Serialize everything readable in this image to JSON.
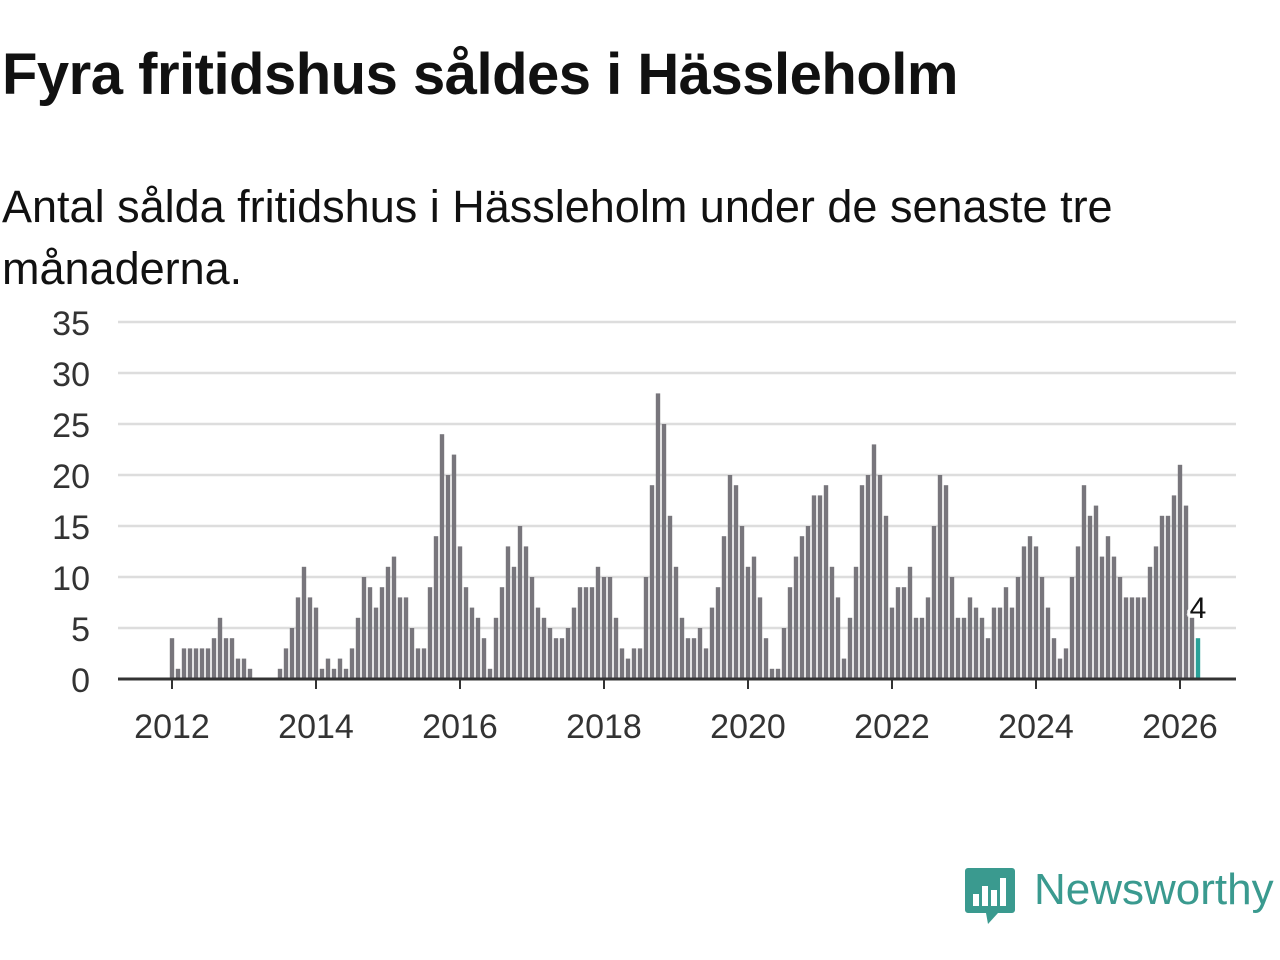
{
  "header": {
    "title": "Fyra fritidshus såldes i Hässleholm",
    "subtitle": "Antal sålda fritidshus i Hässleholm under de senaste tre månaderna."
  },
  "brand": {
    "name": "Newsworthy",
    "icon": "newsworthy-logo-icon",
    "color": "#3a9a8f"
  },
  "colors": {
    "bar": "#78767c",
    "highlight": "#2aa198",
    "grid": "#dddddd",
    "axis": "#333333"
  },
  "chart_data": {
    "type": "bar",
    "title": "Fyra fritidshus såldes i Hässleholm",
    "xlabel": "",
    "ylabel": "",
    "ylim": [
      0,
      35
    ],
    "yticks": [
      0,
      5,
      10,
      15,
      20,
      25,
      30,
      35
    ],
    "xticks": [
      "2012",
      "2014",
      "2016",
      "2018",
      "2020",
      "2022",
      "2024",
      "2026"
    ],
    "start": "2012-01",
    "end": "2026-01",
    "grid": true,
    "highlight_label": "4",
    "values": [
      4,
      1,
      3,
      3,
      3,
      3,
      3,
      4,
      6,
      4,
      4,
      2,
      2,
      1,
      0,
      0,
      0,
      0,
      1,
      3,
      5,
      8,
      11,
      8,
      7,
      1,
      2,
      1,
      2,
      1,
      3,
      6,
      10,
      9,
      7,
      9,
      11,
      12,
      8,
      8,
      5,
      3,
      3,
      9,
      14,
      24,
      20,
      22,
      13,
      9,
      7,
      6,
      4,
      1,
      6,
      9,
      13,
      11,
      15,
      13,
      10,
      7,
      6,
      5,
      4,
      4,
      5,
      7,
      9,
      9,
      9,
      11,
      10,
      10,
      6,
      3,
      2,
      3,
      3,
      10,
      19,
      28,
      25,
      16,
      11,
      6,
      4,
      4,
      5,
      3,
      7,
      9,
      14,
      20,
      19,
      15,
      11,
      12,
      8,
      4,
      1,
      1,
      5,
      9,
      12,
      14,
      15,
      18,
      18,
      19,
      11,
      8,
      2,
      6,
      11,
      19,
      20,
      23,
      20,
      16,
      7,
      9,
      9,
      11,
      6,
      6,
      8,
      15,
      20,
      19,
      10,
      6,
      6,
      8,
      7,
      6,
      4,
      7,
      7,
      9,
      7,
      10,
      13,
      14,
      13,
      10,
      7,
      4,
      2,
      3,
      10,
      13,
      19,
      16,
      17,
      12,
      14,
      12,
      10,
      8,
      8,
      8,
      8,
      11,
      13,
      16,
      16,
      18,
      21,
      17,
      6,
      4
    ]
  }
}
